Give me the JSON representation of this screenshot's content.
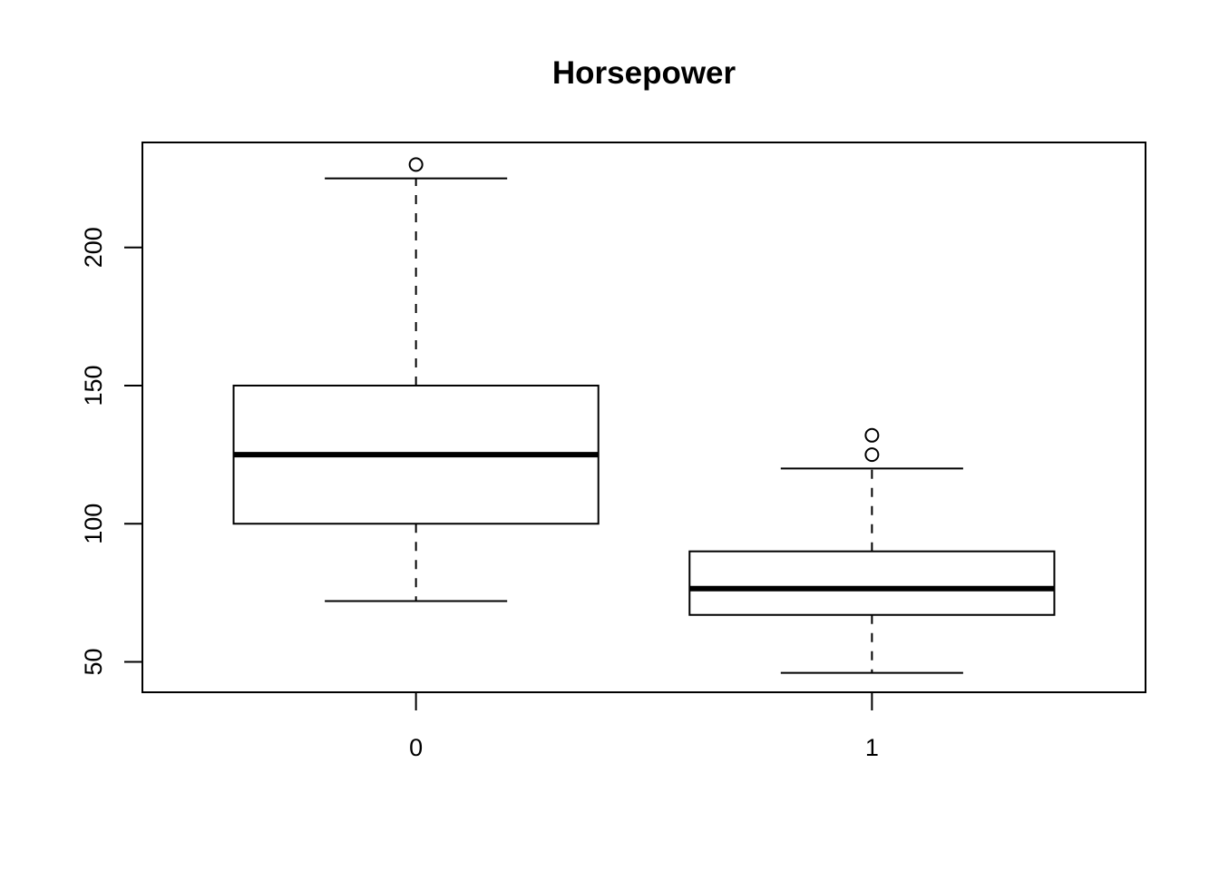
{
  "chart_data": {
    "type": "boxplot",
    "title": "Horsepower",
    "xlabel": "",
    "ylabel": "",
    "categories": [
      "0",
      "1"
    ],
    "boxes": [
      {
        "category": "0",
        "whisker_low": 72,
        "q1": 100,
        "median": 125,
        "q3": 150,
        "whisker_high": 225,
        "outliers": [
          230
        ]
      },
      {
        "category": "1",
        "whisker_low": 46,
        "q1": 67,
        "median": 76.5,
        "q3": 90,
        "whisker_high": 120,
        "outliers": [
          125,
          132
        ]
      }
    ],
    "y_ticks": [
      50,
      100,
      150,
      200
    ],
    "y_tick_labels": [
      "50",
      "100",
      "150",
      "200"
    ],
    "ylim": [
      39,
      238
    ],
    "grid": false,
    "colors": {
      "line": "#000000",
      "fill": "#ffffff"
    }
  }
}
